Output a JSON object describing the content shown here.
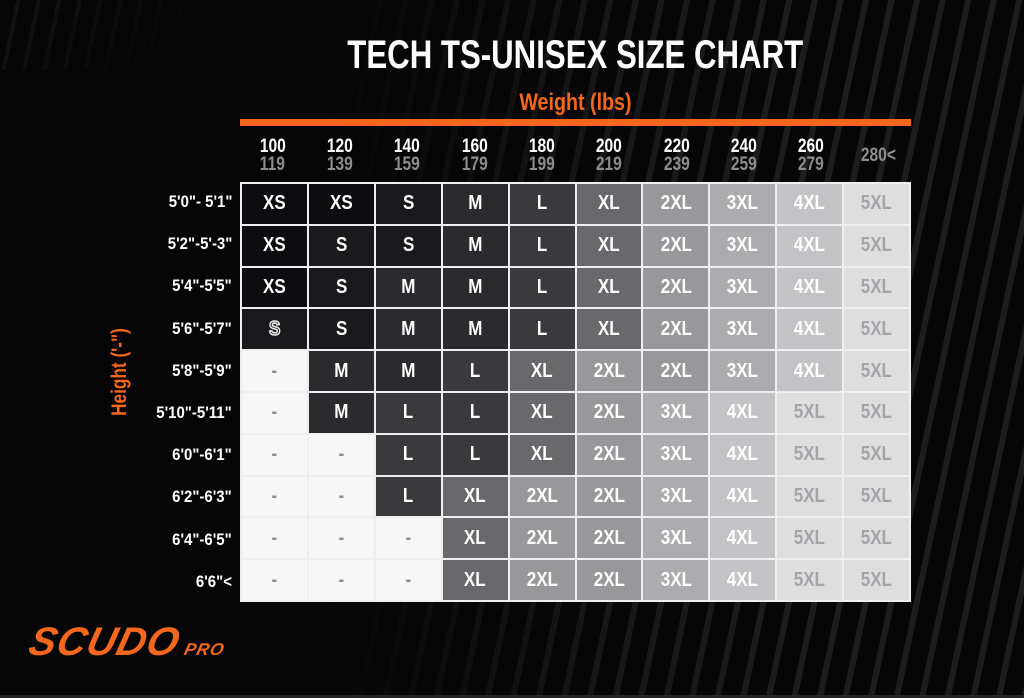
{
  "header": {
    "title": "TECH TS-UNISEX SIZE CHART"
  },
  "logo": {
    "brand": "SCUDO",
    "suffix": "PRO"
  },
  "colors": {
    "background": "#060606",
    "accent_orange": "#F4671D",
    "title_text": "#FFFFFF",
    "grid_line": "#EFEFEF",
    "header_top_number": "#FFFFFF",
    "header_bottom_number": "#8D8D8D",
    "stripe": "#1D1D1D",
    "size_shades": {
      "XS": {
        "bg": "#0D0D0F",
        "text": "#FFFFFF"
      },
      "S": {
        "bg": "#1A1A1C",
        "text": "#FFFFFF"
      },
      "M": {
        "bg": "#2B2B2D",
        "text": "#FFFFFF"
      },
      "L": {
        "bg": "#3A3A3C",
        "text": "#FFFFFF"
      },
      "XL": {
        "bg": "#69696B",
        "text": "#FFFFFF"
      },
      "2XL": {
        "bg": "#98989A",
        "text": "#FFFFFF"
      },
      "3XL": {
        "bg": "#ACACAE",
        "text": "#FFFFFF"
      },
      "4XL": {
        "bg": "#C3C3C5",
        "text": "#FFFFFF"
      },
      "5XL": {
        "bg": "#DEDEDF",
        "text": "#A4A4A6"
      },
      "-": {
        "bg": "#F7F7F7",
        "text": "#8D8D8D"
      }
    }
  },
  "chart_data": {
    "type": "table",
    "title": "TECH TS-UNISEX SIZE CHART",
    "xlabel": "Weight (lbs)",
    "ylabel": "Height ('-\")",
    "columns": [
      {
        "top": "100",
        "bottom": "119"
      },
      {
        "top": "120",
        "bottom": "139"
      },
      {
        "top": "140",
        "bottom": "159"
      },
      {
        "top": "160",
        "bottom": "179"
      },
      {
        "top": "180",
        "bottom": "199"
      },
      {
        "top": "200",
        "bottom": "219"
      },
      {
        "top": "220",
        "bottom": "239"
      },
      {
        "top": "240",
        "bottom": "259"
      },
      {
        "top": "260",
        "bottom": "279"
      },
      {
        "top": "280<",
        "bottom": ""
      }
    ],
    "rows": [
      "5'0\"- 5'1\"",
      "5'2\"-5'-3\"",
      "5'4\"-5'5\"",
      "5'6\"-5'7\"",
      "5'8\"-5'9\"",
      "5'10\"-5'11\"",
      "6'0\"-6'1\"",
      "6'2\"-6'3\"",
      "6'4\"-6'5\"",
      "6'6\"<"
    ],
    "cells": [
      [
        "XS",
        "XS",
        "S",
        "M",
        "L",
        "XL",
        "2XL",
        "3XL",
        "4XL",
        "5XL"
      ],
      [
        "XS",
        "S",
        "S",
        "M",
        "L",
        "XL",
        "2XL",
        "3XL",
        "4XL",
        "5XL"
      ],
      [
        "XS",
        "S",
        "M",
        "M",
        "L",
        "XL",
        "2XL",
        "3XL",
        "4XL",
        "5XL"
      ],
      [
        "S",
        "S",
        "M",
        "M",
        "L",
        "XL",
        "2XL",
        "3XL",
        "4XL",
        "5XL"
      ],
      [
        "-",
        "M",
        "M",
        "L",
        "XL",
        "2XL",
        "2XL",
        "3XL",
        "4XL",
        "5XL"
      ],
      [
        "-",
        "M",
        "L",
        "L",
        "XL",
        "2XL",
        "3XL",
        "4XL",
        "5XL",
        "5XL"
      ],
      [
        "-",
        "-",
        "L",
        "L",
        "XL",
        "2XL",
        "3XL",
        "4XL",
        "5XL",
        "5XL"
      ],
      [
        "-",
        "-",
        "L",
        "XL",
        "2XL",
        "2XL",
        "3XL",
        "4XL",
        "5XL",
        "5XL"
      ],
      [
        "-",
        "-",
        "-",
        "XL",
        "2XL",
        "2XL",
        "3XL",
        "4XL",
        "5XL",
        "5XL"
      ],
      [
        "-",
        "-",
        "-",
        "XL",
        "2XL",
        "2XL",
        "3XL",
        "4XL",
        "5XL",
        "5XL"
      ]
    ],
    "outlined_cell": {
      "row": 3,
      "col": 0,
      "note": "S shown as white-outline glyph"
    }
  }
}
